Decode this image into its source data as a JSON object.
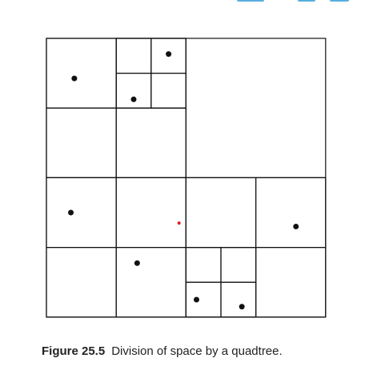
{
  "figure": {
    "label": "Figure 25.5",
    "caption": "Division of space by a quadtree."
  },
  "colors": {
    "line": "#111111",
    "point": "#111111",
    "highlight_point": "#e02020",
    "accent": "#5aaee0"
  },
  "diagram": {
    "type": "quadtree",
    "cells": [
      [
        0,
        0,
        8
      ],
      [
        8,
        0,
        8
      ],
      [
        0,
        8,
        8
      ],
      [
        8,
        8,
        8
      ],
      [
        0,
        0,
        4
      ],
      [
        4,
        0,
        4
      ],
      [
        0,
        4,
        4
      ],
      [
        4,
        4,
        4
      ],
      [
        4,
        0,
        2
      ],
      [
        6,
        0,
        2
      ],
      [
        4,
        2,
        2
      ],
      [
        6,
        2,
        2
      ],
      [
        0,
        8,
        4
      ],
      [
        4,
        8,
        4
      ],
      [
        0,
        12,
        4
      ],
      [
        4,
        12,
        4
      ],
      [
        8,
        8,
        4
      ],
      [
        12,
        8,
        4
      ],
      [
        8,
        12,
        4
      ],
      [
        12,
        12,
        4
      ],
      [
        8,
        12,
        2
      ],
      [
        10,
        12,
        2
      ],
      [
        8,
        14,
        2
      ],
      [
        10,
        14,
        2
      ]
    ],
    "points": [
      {
        "x": 1.6,
        "y": 2.3,
        "highlight": false
      },
      {
        "x": 7.0,
        "y": 0.9,
        "highlight": false
      },
      {
        "x": 5.0,
        "y": 3.5,
        "highlight": false
      },
      {
        "x": 1.4,
        "y": 10.0,
        "highlight": false
      },
      {
        "x": 7.6,
        "y": 10.6,
        "highlight": true
      },
      {
        "x": 14.3,
        "y": 10.8,
        "highlight": false
      },
      {
        "x": 5.2,
        "y": 12.9,
        "highlight": false
      },
      {
        "x": 8.6,
        "y": 15.0,
        "highlight": false
      },
      {
        "x": 11.2,
        "y": 15.4,
        "highlight": false
      }
    ]
  }
}
